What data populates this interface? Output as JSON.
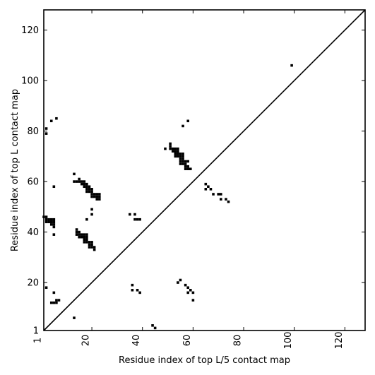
{
  "chart_data": {
    "type": "heatmap",
    "title": "",
    "xlabel": "Residue index of top L/5 contact map",
    "ylabel": "Residue index of top L contact map",
    "xlim": [
      1,
      128
    ],
    "ylim": [
      1,
      128
    ],
    "x_ticks": [
      1,
      20,
      40,
      60,
      80,
      100,
      120
    ],
    "y_ticks": [
      1,
      20,
      40,
      60,
      80,
      100,
      120
    ],
    "x_tick_labels": [
      "1",
      "20",
      "40",
      "60",
      "80",
      "100",
      "120"
    ],
    "y_tick_labels": [
      "1",
      "20",
      "40",
      "60",
      "80",
      "100",
      "120"
    ],
    "x_tick_rotation": -90,
    "diagonal": true,
    "grid": false,
    "cell_color": "#000000",
    "lower_triangle_top_L5": [
      [
        2,
        18
      ],
      [
        5,
        16
      ],
      [
        4,
        12
      ],
      [
        5,
        12
      ],
      [
        6,
        12
      ],
      [
        6,
        13
      ],
      [
        7,
        13
      ],
      [
        13,
        6
      ],
      [
        36,
        19
      ],
      [
        36,
        17
      ],
      [
        38,
        17
      ],
      [
        39,
        16
      ],
      [
        44,
        3
      ],
      [
        45,
        2
      ],
      [
        54,
        20
      ],
      [
        55,
        21
      ],
      [
        57,
        19
      ],
      [
        58,
        18
      ],
      [
        58,
        16
      ],
      [
        59,
        17
      ],
      [
        60,
        16
      ],
      [
        60,
        13
      ]
    ],
    "upper_triangle_top_L": [
      [
        2,
        81
      ],
      [
        2,
        79
      ],
      [
        4,
        84
      ],
      [
        6,
        85
      ],
      [
        5,
        58
      ],
      [
        1,
        46
      ],
      [
        2,
        46
      ],
      [
        2,
        45
      ],
      [
        3,
        45
      ],
      [
        4,
        45
      ],
      [
        5,
        45
      ],
      [
        2,
        44
      ],
      [
        3,
        44
      ],
      [
        4,
        44
      ],
      [
        5,
        44
      ],
      [
        4,
        43
      ],
      [
        5,
        43
      ],
      [
        5,
        42
      ],
      [
        5,
        39
      ],
      [
        13,
        63
      ],
      [
        13,
        60
      ],
      [
        14,
        60
      ],
      [
        15,
        60
      ],
      [
        15,
        61
      ],
      [
        16,
        60
      ],
      [
        17,
        60
      ],
      [
        16,
        59
      ],
      [
        17,
        59
      ],
      [
        18,
        59
      ],
      [
        17,
        58
      ],
      [
        18,
        58
      ],
      [
        19,
        58
      ],
      [
        18,
        57
      ],
      [
        19,
        57
      ],
      [
        20,
        57
      ],
      [
        18,
        56
      ],
      [
        19,
        56
      ],
      [
        20,
        56
      ],
      [
        20,
        55
      ],
      [
        21,
        55
      ],
      [
        22,
        55
      ],
      [
        23,
        55
      ],
      [
        20,
        54
      ],
      [
        21,
        54
      ],
      [
        22,
        54
      ],
      [
        23,
        54
      ],
      [
        22,
        53
      ],
      [
        23,
        53
      ],
      [
        20,
        49
      ],
      [
        20,
        47
      ],
      [
        18,
        45
      ],
      [
        14,
        41
      ],
      [
        14,
        40
      ],
      [
        15,
        40
      ],
      [
        14,
        39
      ],
      [
        15,
        39
      ],
      [
        16,
        39
      ],
      [
        17,
        39
      ],
      [
        18,
        39
      ],
      [
        15,
        38
      ],
      [
        16,
        38
      ],
      [
        17,
        38
      ],
      [
        18,
        38
      ],
      [
        17,
        37
      ],
      [
        18,
        37
      ],
      [
        17,
        36
      ],
      [
        18,
        36
      ],
      [
        19,
        36
      ],
      [
        20,
        36
      ],
      [
        19,
        35
      ],
      [
        20,
        35
      ],
      [
        19,
        34
      ],
      [
        20,
        34
      ],
      [
        21,
        34
      ],
      [
        21,
        33
      ],
      [
        35,
        47
      ],
      [
        37,
        47
      ],
      [
        37,
        45
      ],
      [
        38,
        45
      ],
      [
        39,
        45
      ],
      [
        49,
        73
      ],
      [
        51,
        75
      ],
      [
        51,
        74
      ],
      [
        51,
        73
      ],
      [
        52,
        73
      ],
      [
        53,
        73
      ],
      [
        54,
        73
      ],
      [
        52,
        72
      ],
      [
        53,
        72
      ],
      [
        54,
        72
      ],
      [
        53,
        71
      ],
      [
        54,
        71
      ],
      [
        55,
        71
      ],
      [
        56,
        71
      ],
      [
        53,
        70
      ],
      [
        54,
        70
      ],
      [
        55,
        70
      ],
      [
        56,
        70
      ],
      [
        55,
        69
      ],
      [
        56,
        69
      ],
      [
        55,
        68
      ],
      [
        56,
        68
      ],
      [
        57,
        68
      ],
      [
        58,
        68
      ],
      [
        55,
        67
      ],
      [
        56,
        67
      ],
      [
        57,
        67
      ],
      [
        57,
        66
      ],
      [
        58,
        66
      ],
      [
        57,
        65
      ],
      [
        58,
        65
      ],
      [
        59,
        65
      ],
      [
        56,
        82
      ],
      [
        58,
        84
      ],
      [
        65,
        59
      ],
      [
        66,
        58
      ],
      [
        65,
        57
      ],
      [
        67,
        57
      ],
      [
        68,
        55
      ],
      [
        70,
        55
      ],
      [
        71,
        55
      ],
      [
        71,
        53
      ],
      [
        73,
        53
      ],
      [
        74,
        52
      ],
      [
        99,
        106
      ]
    ]
  }
}
